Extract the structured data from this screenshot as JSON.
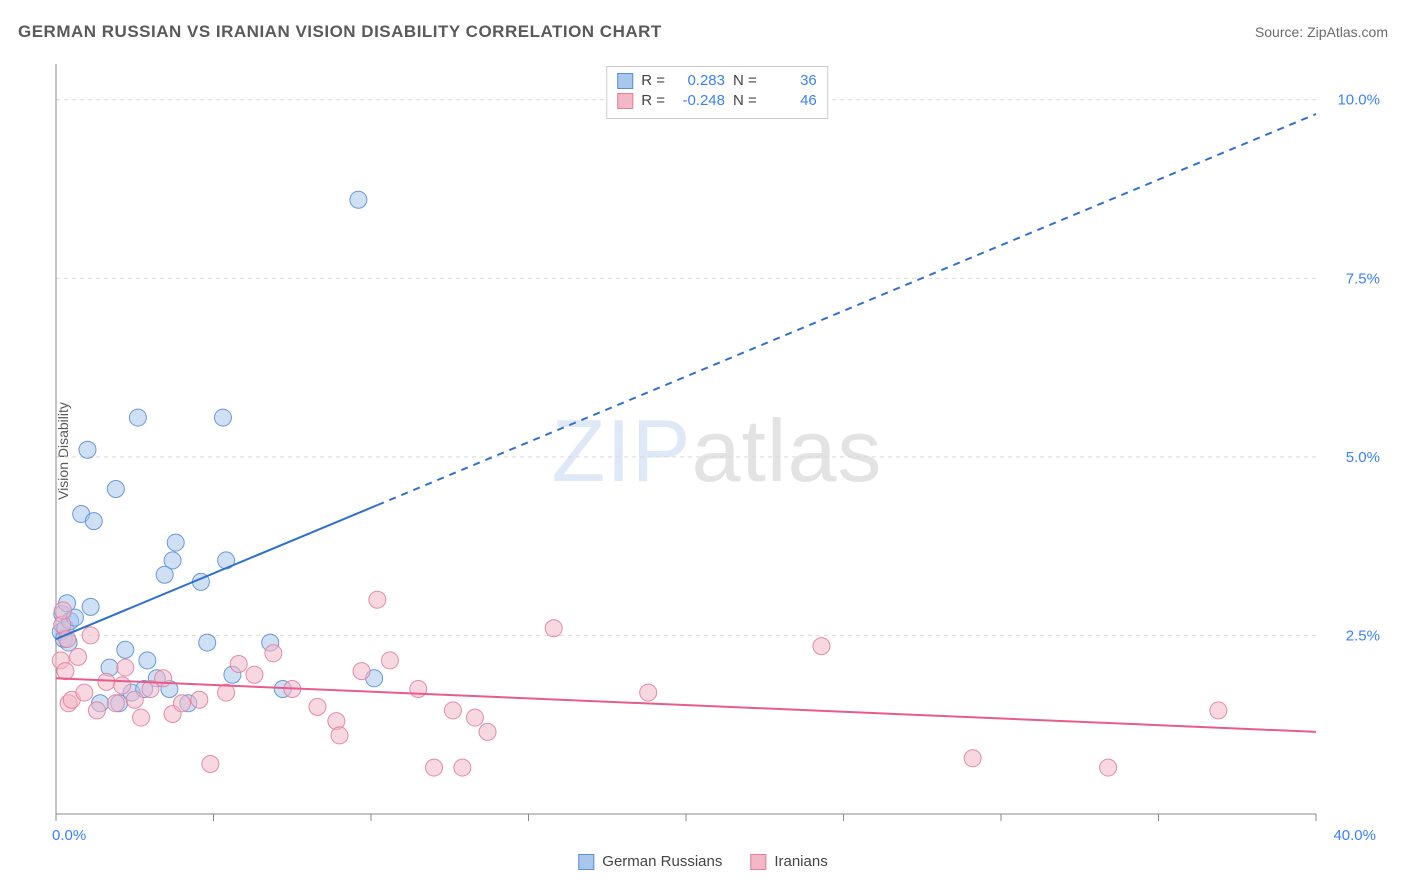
{
  "title": "GERMAN RUSSIAN VS IRANIAN VISION DISABILITY CORRELATION CHART",
  "source_label": "Source: ",
  "source_name": "ZipAtlas.com",
  "ylabel": "Vision Disability",
  "watermark_a": "ZIP",
  "watermark_b": "atlas",
  "chart": {
    "type": "scatter",
    "xlim": [
      0,
      40
    ],
    "ylim": [
      0,
      10.5
    ],
    "x_tick_start": 0,
    "x_tick_end": 40,
    "x_tick_label_start": "0.0%",
    "x_tick_label_end": "40.0%",
    "y_ticks": [
      2.5,
      5.0,
      7.5,
      10.0
    ],
    "y_tick_labels": [
      "2.5%",
      "5.0%",
      "7.5%",
      "10.0%"
    ],
    "grid_color": "#d9d9d9",
    "axis_color": "#888888",
    "background_color": "#ffffff",
    "blue_value_color": "#3b82f6",
    "marker_radius": 8.5,
    "marker_opacity": 0.55,
    "marker_stroke_opacity": 0.9,
    "series": [
      {
        "name": "German Russians",
        "fill": "#a8c7ec",
        "stroke": "#5a8fd6",
        "r_value": "0.283",
        "n_value": "36",
        "trend": {
          "x1": 0,
          "y1": 2.45,
          "x2": 40,
          "y2": 9.8,
          "solid_until_x": 10.2,
          "color": "#2f6fd1",
          "width": 2
        },
        "points": [
          [
            0.15,
            2.55
          ],
          [
            0.2,
            2.8
          ],
          [
            0.25,
            2.45
          ],
          [
            0.3,
            2.6
          ],
          [
            0.35,
            2.95
          ],
          [
            0.4,
            2.4
          ],
          [
            0.45,
            2.7
          ],
          [
            0.6,
            2.75
          ],
          [
            0.8,
            4.2
          ],
          [
            1.0,
            5.1
          ],
          [
            1.1,
            2.9
          ],
          [
            1.2,
            4.1
          ],
          [
            1.4,
            1.55
          ],
          [
            1.7,
            2.05
          ],
          [
            1.9,
            4.55
          ],
          [
            2.0,
            1.55
          ],
          [
            2.2,
            2.3
          ],
          [
            2.4,
            1.7
          ],
          [
            2.6,
            5.55
          ],
          [
            2.8,
            1.75
          ],
          [
            2.9,
            2.15
          ],
          [
            3.2,
            1.9
          ],
          [
            3.45,
            3.35
          ],
          [
            3.6,
            1.75
          ],
          [
            3.7,
            3.55
          ],
          [
            3.8,
            3.8
          ],
          [
            4.2,
            1.55
          ],
          [
            4.6,
            3.25
          ],
          [
            4.8,
            2.4
          ],
          [
            5.3,
            5.55
          ],
          [
            5.4,
            3.55
          ],
          [
            5.6,
            1.95
          ],
          [
            6.8,
            2.4
          ],
          [
            7.2,
            1.75
          ],
          [
            9.6,
            8.6
          ],
          [
            10.1,
            1.9
          ]
        ]
      },
      {
        "name": "Iranians",
        "fill": "#f3b8c6",
        "stroke": "#e37ea0",
        "r_value": "-0.248",
        "n_value": "46",
        "trend": {
          "x1": 0,
          "y1": 1.9,
          "x2": 40,
          "y2": 1.15,
          "solid_until_x": 40,
          "color": "#e85b8a",
          "width": 2
        },
        "points": [
          [
            0.15,
            2.15
          ],
          [
            0.2,
            2.65
          ],
          [
            0.22,
            2.85
          ],
          [
            0.3,
            2.0
          ],
          [
            0.35,
            2.45
          ],
          [
            0.4,
            1.55
          ],
          [
            0.5,
            1.6
          ],
          [
            0.7,
            2.2
          ],
          [
            0.9,
            1.7
          ],
          [
            1.1,
            2.5
          ],
          [
            1.3,
            1.45
          ],
          [
            1.6,
            1.85
          ],
          [
            1.9,
            1.55
          ],
          [
            2.1,
            1.8
          ],
          [
            2.2,
            2.05
          ],
          [
            2.5,
            1.6
          ],
          [
            2.7,
            1.35
          ],
          [
            3.0,
            1.75
          ],
          [
            3.4,
            1.9
          ],
          [
            3.7,
            1.4
          ],
          [
            4.0,
            1.55
          ],
          [
            4.55,
            1.6
          ],
          [
            4.9,
            0.7
          ],
          [
            5.4,
            1.7
          ],
          [
            5.8,
            2.1
          ],
          [
            6.3,
            1.95
          ],
          [
            6.9,
            2.25
          ],
          [
            7.5,
            1.75
          ],
          [
            8.3,
            1.5
          ],
          [
            8.9,
            1.3
          ],
          [
            9.0,
            1.1
          ],
          [
            9.7,
            2.0
          ],
          [
            10.2,
            3.0
          ],
          [
            10.6,
            2.15
          ],
          [
            11.5,
            1.75
          ],
          [
            12.0,
            0.65
          ],
          [
            12.6,
            1.45
          ],
          [
            12.9,
            0.65
          ],
          [
            13.3,
            1.35
          ],
          [
            13.7,
            1.15
          ],
          [
            15.8,
            2.6
          ],
          [
            18.8,
            1.7
          ],
          [
            24.3,
            2.35
          ],
          [
            29.1,
            0.78
          ],
          [
            33.4,
            0.65
          ],
          [
            36.9,
            1.45
          ]
        ]
      }
    ]
  },
  "legend": {
    "series1_label": "German Russians",
    "series2_label": "Iranians"
  },
  "stat_prefix_r": "R =",
  "stat_prefix_n": "N ="
}
